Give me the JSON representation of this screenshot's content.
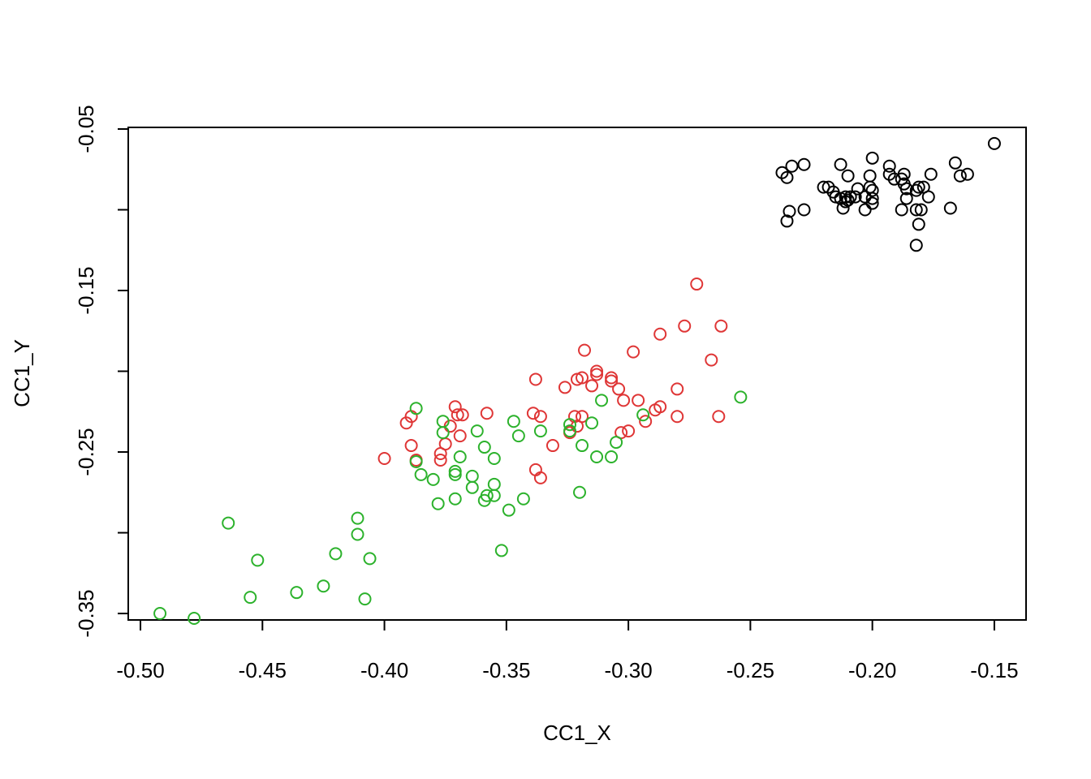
{
  "chart_data": {
    "type": "scatter",
    "title": "",
    "xlabel": "CC1_X",
    "ylabel": "CC1_Y",
    "xlim": [
      -0.505,
      -0.137
    ],
    "ylim": [
      -0.354,
      -0.049
    ],
    "x_ticks": [
      -0.5,
      -0.45,
      -0.4,
      -0.35,
      -0.3,
      -0.25,
      -0.2,
      -0.15
    ],
    "x_tick_labels": [
      "-0.50",
      "-0.45",
      "-0.40",
      "-0.35",
      "-0.30",
      "-0.25",
      "-0.20",
      "-0.15"
    ],
    "y_ticks": [
      -0.05,
      -0.1,
      -0.15,
      -0.2,
      -0.25,
      -0.3,
      -0.35
    ],
    "y_tick_labels": [
      "-0.05",
      "",
      "-0.15",
      "",
      "-0.25",
      "",
      "-0.35"
    ],
    "grid": false,
    "series": [
      {
        "color": "#000000",
        "points": [
          [
            -0.15,
            -0.059
          ],
          [
            -0.166,
            -0.071
          ],
          [
            -0.161,
            -0.078
          ],
          [
            -0.164,
            -0.079
          ],
          [
            -0.176,
            -0.078
          ],
          [
            -0.168,
            -0.099
          ],
          [
            -0.177,
            -0.092
          ],
          [
            -0.179,
            -0.086
          ],
          [
            -0.181,
            -0.086
          ],
          [
            -0.182,
            -0.088
          ],
          [
            -0.18,
            -0.1
          ],
          [
            -0.182,
            -0.1
          ],
          [
            -0.181,
            -0.109
          ],
          [
            -0.182,
            -0.122
          ],
          [
            -0.186,
            -0.087
          ],
          [
            -0.187,
            -0.078
          ],
          [
            -0.187,
            -0.084
          ],
          [
            -0.188,
            -0.081
          ],
          [
            -0.188,
            -0.1
          ],
          [
            -0.186,
            -0.093
          ],
          [
            -0.191,
            -0.081
          ],
          [
            -0.193,
            -0.078
          ],
          [
            -0.193,
            -0.073
          ],
          [
            -0.2,
            -0.068
          ],
          [
            -0.2,
            -0.088
          ],
          [
            -0.2,
            -0.093
          ],
          [
            -0.2,
            -0.096
          ],
          [
            -0.201,
            -0.079
          ],
          [
            -0.201,
            -0.086
          ],
          [
            -0.203,
            -0.092
          ],
          [
            -0.203,
            -0.1
          ],
          [
            -0.206,
            -0.087
          ],
          [
            -0.207,
            -0.092
          ],
          [
            -0.21,
            -0.079
          ],
          [
            -0.21,
            -0.094
          ],
          [
            -0.209,
            -0.092
          ],
          [
            -0.211,
            -0.092
          ],
          [
            -0.211,
            -0.095
          ],
          [
            -0.212,
            -0.099
          ],
          [
            -0.213,
            -0.093
          ],
          [
            -0.213,
            -0.072
          ],
          [
            -0.215,
            -0.092
          ],
          [
            -0.216,
            -0.089
          ],
          [
            -0.218,
            -0.086
          ],
          [
            -0.22,
            -0.086
          ],
          [
            -0.228,
            -0.072
          ],
          [
            -0.228,
            -0.1
          ],
          [
            -0.233,
            -0.073
          ],
          [
            -0.234,
            -0.101
          ],
          [
            -0.235,
            -0.08
          ],
          [
            -0.237,
            -0.077
          ],
          [
            -0.235,
            -0.107
          ]
        ]
      },
      {
        "color": "#df3636",
        "points": [
          [
            -0.272,
            -0.146
          ],
          [
            -0.262,
            -0.172
          ],
          [
            -0.277,
            -0.172
          ],
          [
            -0.266,
            -0.193
          ],
          [
            -0.263,
            -0.228
          ],
          [
            -0.287,
            -0.177
          ],
          [
            -0.298,
            -0.188
          ],
          [
            -0.28,
            -0.211
          ],
          [
            -0.28,
            -0.228
          ],
          [
            -0.287,
            -0.222
          ],
          [
            -0.289,
            -0.224
          ],
          [
            -0.293,
            -0.231
          ],
          [
            -0.296,
            -0.218
          ],
          [
            -0.3,
            -0.237
          ],
          [
            -0.303,
            -0.238
          ],
          [
            -0.302,
            -0.218
          ],
          [
            -0.304,
            -0.211
          ],
          [
            -0.307,
            -0.204
          ],
          [
            -0.307,
            -0.206
          ],
          [
            -0.313,
            -0.2
          ],
          [
            -0.313,
            -0.202
          ],
          [
            -0.315,
            -0.209
          ],
          [
            -0.318,
            -0.187
          ],
          [
            -0.319,
            -0.204
          ],
          [
            -0.321,
            -0.205
          ],
          [
            -0.319,
            -0.228
          ],
          [
            -0.321,
            -0.234
          ],
          [
            -0.322,
            -0.228
          ],
          [
            -0.324,
            -0.238
          ],
          [
            -0.326,
            -0.21
          ],
          [
            -0.331,
            -0.246
          ],
          [
            -0.336,
            -0.266
          ],
          [
            -0.338,
            -0.261
          ],
          [
            -0.336,
            -0.228
          ],
          [
            -0.339,
            -0.226
          ],
          [
            -0.338,
            -0.205
          ],
          [
            -0.358,
            -0.226
          ],
          [
            -0.368,
            -0.227
          ],
          [
            -0.369,
            -0.24
          ],
          [
            -0.37,
            -0.227
          ],
          [
            -0.371,
            -0.222
          ],
          [
            -0.373,
            -0.234
          ],
          [
            -0.375,
            -0.245
          ],
          [
            -0.377,
            -0.251
          ],
          [
            -0.377,
            -0.255
          ],
          [
            -0.387,
            -0.255
          ],
          [
            -0.389,
            -0.246
          ],
          [
            -0.389,
            -0.228
          ],
          [
            -0.391,
            -0.232
          ],
          [
            -0.4,
            -0.254
          ]
        ]
      },
      {
        "color": "#2cb22c",
        "points": [
          [
            -0.254,
            -0.216
          ],
          [
            -0.294,
            -0.227
          ],
          [
            -0.305,
            -0.244
          ],
          [
            -0.307,
            -0.253
          ],
          [
            -0.311,
            -0.218
          ],
          [
            -0.313,
            -0.253
          ],
          [
            -0.315,
            -0.232
          ],
          [
            -0.319,
            -0.246
          ],
          [
            -0.32,
            -0.275
          ],
          [
            -0.324,
            -0.233
          ],
          [
            -0.324,
            -0.237
          ],
          [
            -0.336,
            -0.237
          ],
          [
            -0.343,
            -0.279
          ],
          [
            -0.345,
            -0.24
          ],
          [
            -0.347,
            -0.231
          ],
          [
            -0.349,
            -0.286
          ],
          [
            -0.352,
            -0.311
          ],
          [
            -0.355,
            -0.254
          ],
          [
            -0.355,
            -0.27
          ],
          [
            -0.355,
            -0.277
          ],
          [
            -0.358,
            -0.277
          ],
          [
            -0.359,
            -0.28
          ],
          [
            -0.359,
            -0.247
          ],
          [
            -0.362,
            -0.237
          ],
          [
            -0.364,
            -0.265
          ],
          [
            -0.364,
            -0.272
          ],
          [
            -0.369,
            -0.253
          ],
          [
            -0.371,
            -0.262
          ],
          [
            -0.371,
            -0.264
          ],
          [
            -0.371,
            -0.279
          ],
          [
            -0.376,
            -0.231
          ],
          [
            -0.376,
            -0.238
          ],
          [
            -0.378,
            -0.282
          ],
          [
            -0.38,
            -0.267
          ],
          [
            -0.385,
            -0.264
          ],
          [
            -0.387,
            -0.223
          ],
          [
            -0.387,
            -0.256
          ],
          [
            -0.406,
            -0.316
          ],
          [
            -0.408,
            -0.341
          ],
          [
            -0.411,
            -0.291
          ],
          [
            -0.411,
            -0.301
          ],
          [
            -0.42,
            -0.313
          ],
          [
            -0.425,
            -0.333
          ],
          [
            -0.436,
            -0.337
          ],
          [
            -0.452,
            -0.317
          ],
          [
            -0.455,
            -0.34
          ],
          [
            -0.464,
            -0.294
          ],
          [
            -0.478,
            -0.353
          ],
          [
            -0.492,
            -0.35
          ]
        ]
      }
    ]
  }
}
